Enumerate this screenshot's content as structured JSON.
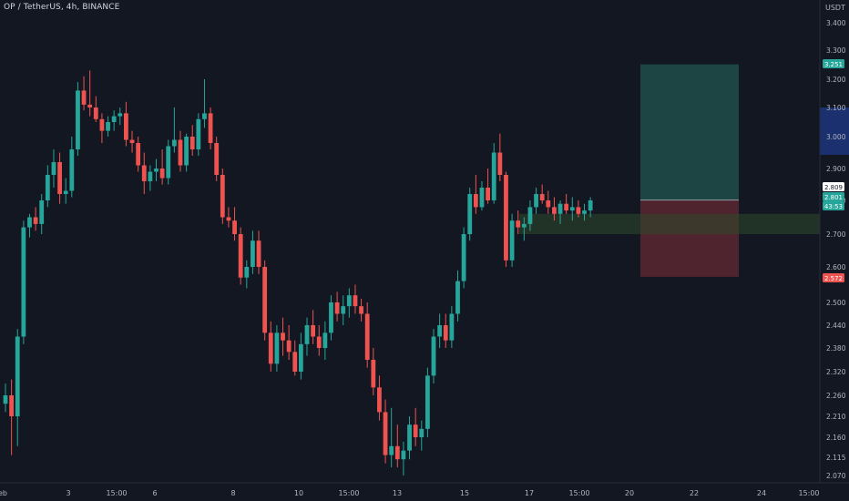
{
  "header": {
    "title": "OP / TetherUS, 4h, BINANCE",
    "unit": "USDT"
  },
  "colors": {
    "background": "#131722",
    "up": "#26a69a",
    "down": "#ef5350",
    "profit_zone": "#1f4e4a",
    "loss_zone": "#5a2730",
    "entry_zone": "#2d4a2c",
    "axis_text": "#b2b5be",
    "blue_highlight": "#1e3a8a"
  },
  "chart_data": {
    "type": "candlestick",
    "symbol": "OP / TetherUS",
    "interval": "4h",
    "exchange": "BINANCE",
    "y_axis_labels": [
      "3.400",
      "3.300",
      "3.200",
      "3.100",
      "3.000",
      "2.900",
      "2.800",
      "2.700",
      "2.600",
      "2.500",
      "2.440",
      "2.380",
      "2.320",
      "2.260",
      "2.210",
      "2.160",
      "2.115",
      "2.070"
    ],
    "x_axis_labels": [
      "eb",
      "3",
      "15:00",
      "6",
      "8",
      "10",
      "15:00",
      "13",
      "15",
      "17",
      "15:00",
      "20",
      "22",
      "24",
      "15:00"
    ],
    "price_tags": [
      {
        "label": "3.251",
        "value": 3.251,
        "color": "#26a69a"
      },
      {
        "label": "2.809",
        "value": 2.809,
        "color": "#ffffff"
      },
      {
        "label": "2.801",
        "value": 2.801,
        "color": "#26a69a"
      },
      {
        "label": "43:53",
        "value": 2.78,
        "color": "#26a69a"
      },
      {
        "label": "2.572",
        "value": 2.572,
        "color": "#ef5350"
      }
    ],
    "position": {
      "target": 3.251,
      "entry": 2.801,
      "stop": 2.572
    },
    "entry_zone": {
      "low": 2.7,
      "high": 2.76
    },
    "candles": [
      [
        2.24,
        2.29,
        2.22,
        2.26
      ],
      [
        2.26,
        2.3,
        2.12,
        2.21
      ],
      [
        2.21,
        2.43,
        2.14,
        2.41
      ],
      [
        2.41,
        2.74,
        2.39,
        2.72
      ],
      [
        2.72,
        2.76,
        2.69,
        2.75
      ],
      [
        2.75,
        2.78,
        2.71,
        2.73
      ],
      [
        2.73,
        2.82,
        2.7,
        2.8
      ],
      [
        2.8,
        2.91,
        2.78,
        2.88
      ],
      [
        2.88,
        2.96,
        2.84,
        2.92
      ],
      [
        2.92,
        2.95,
        2.79,
        2.82
      ],
      [
        2.82,
        2.87,
        2.79,
        2.83
      ],
      [
        2.83,
        3.0,
        2.81,
        2.96
      ],
      [
        2.96,
        3.19,
        2.94,
        3.16
      ],
      [
        3.16,
        3.21,
        3.09,
        3.11
      ],
      [
        3.11,
        3.23,
        3.07,
        3.1
      ],
      [
        3.1,
        3.14,
        3.05,
        3.06
      ],
      [
        3.06,
        3.08,
        2.98,
        3.02
      ],
      [
        3.02,
        3.07,
        3.0,
        3.05
      ],
      [
        3.05,
        3.09,
        3.02,
        3.07
      ],
      [
        3.07,
        3.1,
        3.04,
        3.08
      ],
      [
        3.08,
        3.12,
        2.97,
        2.99
      ],
      [
        2.99,
        3.02,
        2.95,
        2.98
      ],
      [
        2.98,
        3.0,
        2.89,
        2.91
      ],
      [
        2.91,
        2.95,
        2.82,
        2.86
      ],
      [
        2.86,
        2.91,
        2.83,
        2.89
      ],
      [
        2.89,
        2.93,
        2.86,
        2.9
      ],
      [
        2.9,
        2.96,
        2.85,
        2.87
      ],
      [
        2.87,
        2.99,
        2.85,
        2.97
      ],
      [
        2.97,
        3.1,
        2.95,
        2.99
      ],
      [
        2.99,
        3.02,
        2.89,
        2.91
      ],
      [
        2.91,
        3.01,
        2.89,
        3.0
      ],
      [
        3.0,
        3.04,
        2.94,
        2.96
      ],
      [
        2.96,
        3.08,
        2.94,
        3.06
      ],
      [
        3.06,
        3.2,
        3.03,
        3.08
      ],
      [
        3.08,
        3.1,
        2.96,
        2.98
      ],
      [
        2.98,
        3.0,
        2.86,
        2.88
      ],
      [
        2.88,
        2.9,
        2.73,
        2.75
      ],
      [
        2.75,
        2.78,
        2.72,
        2.74
      ],
      [
        2.74,
        2.78,
        2.68,
        2.7
      ],
      [
        2.7,
        2.72,
        2.55,
        2.57
      ],
      [
        2.57,
        2.62,
        2.54,
        2.6
      ],
      [
        2.6,
        2.71,
        2.58,
        2.68
      ],
      [
        2.68,
        2.71,
        2.58,
        2.6
      ],
      [
        2.6,
        2.62,
        2.4,
        2.42
      ],
      [
        2.42,
        2.45,
        2.32,
        2.34
      ],
      [
        2.34,
        2.44,
        2.32,
        2.42
      ],
      [
        2.42,
        2.46,
        2.36,
        2.4
      ],
      [
        2.4,
        2.44,
        2.35,
        2.37
      ],
      [
        2.37,
        2.4,
        2.31,
        2.32
      ],
      [
        2.32,
        2.42,
        2.3,
        2.39
      ],
      [
        2.39,
        2.46,
        2.36,
        2.44
      ],
      [
        2.44,
        2.48,
        2.39,
        2.41
      ],
      [
        2.41,
        2.44,
        2.36,
        2.38
      ],
      [
        2.38,
        2.45,
        2.35,
        2.42
      ],
      [
        2.42,
        2.52,
        2.4,
        2.5
      ],
      [
        2.5,
        2.53,
        2.45,
        2.47
      ],
      [
        2.47,
        2.52,
        2.44,
        2.49
      ],
      [
        2.49,
        2.54,
        2.46,
        2.52
      ],
      [
        2.52,
        2.55,
        2.47,
        2.49
      ],
      [
        2.49,
        2.51,
        2.45,
        2.47
      ],
      [
        2.47,
        2.5,
        2.33,
        2.35
      ],
      [
        2.35,
        2.38,
        2.26,
        2.28
      ],
      [
        2.28,
        2.31,
        2.2,
        2.22
      ],
      [
        2.22,
        2.25,
        2.1,
        2.12
      ],
      [
        2.12,
        2.23,
        2.09,
        2.14
      ],
      [
        2.14,
        2.19,
        2.09,
        2.11
      ],
      [
        2.11,
        2.15,
        2.07,
        2.13
      ],
      [
        2.13,
        2.21,
        2.11,
        2.19
      ],
      [
        2.19,
        2.23,
        2.14,
        2.16
      ],
      [
        2.16,
        2.2,
        2.13,
        2.18
      ],
      [
        2.18,
        2.33,
        2.16,
        2.31
      ],
      [
        2.31,
        2.43,
        2.29,
        2.41
      ],
      [
        2.41,
        2.47,
        2.38,
        2.44
      ],
      [
        2.44,
        2.47,
        2.38,
        2.4
      ],
      [
        2.4,
        2.49,
        2.38,
        2.47
      ],
      [
        2.47,
        2.59,
        2.45,
        2.56
      ],
      [
        2.56,
        2.72,
        2.54,
        2.7
      ],
      [
        2.7,
        2.84,
        2.68,
        2.82
      ],
      [
        2.82,
        2.88,
        2.76,
        2.78
      ],
      [
        2.78,
        2.86,
        2.77,
        2.84
      ],
      [
        2.84,
        2.9,
        2.79,
        2.8
      ],
      [
        2.8,
        2.98,
        2.79,
        2.95
      ],
      [
        2.95,
        3.01,
        2.86,
        2.88
      ],
      [
        2.88,
        2.89,
        2.6,
        2.62
      ],
      [
        2.62,
        2.76,
        2.6,
        2.74
      ],
      [
        2.74,
        2.77,
        2.7,
        2.72
      ],
      [
        2.72,
        2.75,
        2.68,
        2.73
      ],
      [
        2.73,
        2.8,
        2.71,
        2.78
      ],
      [
        2.78,
        2.84,
        2.76,
        2.82
      ],
      [
        2.82,
        2.85,
        2.79,
        2.8
      ],
      [
        2.8,
        2.83,
        2.76,
        2.78
      ],
      [
        2.78,
        2.81,
        2.74,
        2.76
      ],
      [
        2.76,
        2.8,
        2.73,
        2.79
      ],
      [
        2.79,
        2.82,
        2.76,
        2.77
      ],
      [
        2.77,
        2.81,
        2.74,
        2.78
      ],
      [
        2.78,
        2.8,
        2.75,
        2.76
      ],
      [
        2.76,
        2.79,
        2.74,
        2.77
      ],
      [
        2.77,
        2.81,
        2.75,
        2.8
      ]
    ]
  }
}
